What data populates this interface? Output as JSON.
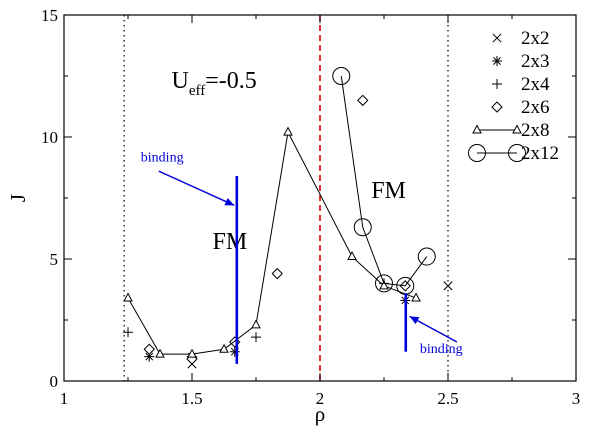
{
  "chart_data": {
    "type": "scatter",
    "title": "",
    "xlabel": "ρ",
    "ylabel": "J",
    "xlim": [
      1,
      3
    ],
    "ylim": [
      0,
      15
    ],
    "xticks": [
      "1",
      "1.5",
      "2",
      "2.5",
      "3"
    ],
    "yticks": [
      "0",
      "5",
      "10",
      "15"
    ],
    "xtick_values": [
      1,
      1.5,
      2,
      2.5,
      3
    ],
    "ytick_values": [
      0,
      5,
      10,
      15
    ],
    "grid": false,
    "legend_position": "top-right",
    "vlines": [
      {
        "x": 1.235,
        "style": "dotted",
        "color": "#000000"
      },
      {
        "x": 2.0,
        "style": "dashed",
        "color": "#e00000"
      },
      {
        "x": 2.5,
        "style": "dotted",
        "color": "#000000"
      }
    ],
    "series": [
      {
        "name": "2x2",
        "marker": "cross",
        "connected": false,
        "points": [
          [
            1.5,
            0.7
          ],
          [
            2.5,
            3.9
          ]
        ]
      },
      {
        "name": "2x3",
        "marker": "asterisk",
        "connected": false,
        "points": [
          [
            1.333,
            1.0
          ],
          [
            1.5,
            1.0
          ],
          [
            1.667,
            1.2
          ],
          [
            2.333,
            3.3
          ]
        ]
      },
      {
        "name": "2x4",
        "marker": "plus",
        "connected": false,
        "points": [
          [
            1.25,
            2.0
          ],
          [
            1.5,
            1.0
          ],
          [
            1.75,
            1.8
          ],
          [
            2.25,
            4.0
          ]
        ]
      },
      {
        "name": "2x6",
        "marker": "diamond",
        "connected": false,
        "points": [
          [
            1.333,
            1.3
          ],
          [
            1.5,
            0.9
          ],
          [
            1.667,
            1.6
          ],
          [
            1.833,
            4.4
          ],
          [
            2.167,
            11.5
          ],
          [
            2.333,
            3.9
          ]
        ]
      },
      {
        "name": "2x8",
        "marker": "triangle",
        "connected": true,
        "points": [
          [
            1.25,
            3.4
          ],
          [
            1.375,
            1.1
          ],
          [
            1.5,
            1.1
          ],
          [
            1.625,
            1.3
          ],
          [
            1.75,
            2.3
          ],
          [
            1.875,
            10.2
          ],
          [
            2.125,
            5.1
          ],
          [
            2.25,
            3.9
          ],
          [
            2.375,
            3.4
          ]
        ]
      },
      {
        "name": "2x12",
        "marker": "circle",
        "connected": true,
        "points": [
          [
            2.083,
            12.5
          ],
          [
            2.167,
            6.3
          ],
          [
            2.25,
            4.0
          ],
          [
            2.333,
            3.9
          ],
          [
            2.417,
            5.1
          ]
        ]
      }
    ],
    "annotations": [
      {
        "id": "ueff",
        "text": "U",
        "sub": "eff",
        "rest": "=-0.5",
        "x": 1.42,
        "y": 12.0
      },
      {
        "id": "fm-left",
        "text": "FM",
        "x": 1.58,
        "y": 5.4
      },
      {
        "id": "fm-right",
        "text": "FM",
        "x": 2.2,
        "y": 7.5
      },
      {
        "id": "binding-left",
        "text": "binding",
        "color": "#0000dd",
        "x": 1.3,
        "y": 9.0,
        "arrow_from": [
          1.37,
          8.6
        ],
        "arrow_to": [
          1.665,
          7.2
        ],
        "bar": {
          "x": 1.675,
          "y0": 0.7,
          "y1": 8.4
        }
      },
      {
        "id": "binding-right",
        "text": "binding",
        "color": "#0000dd",
        "x": 2.39,
        "y": 1.15,
        "arrow_from": [
          2.535,
          1.6
        ],
        "arrow_to": [
          2.35,
          2.65
        ],
        "bar": {
          "x": 2.335,
          "y0": 1.2,
          "y1": 3.6
        }
      }
    ]
  }
}
